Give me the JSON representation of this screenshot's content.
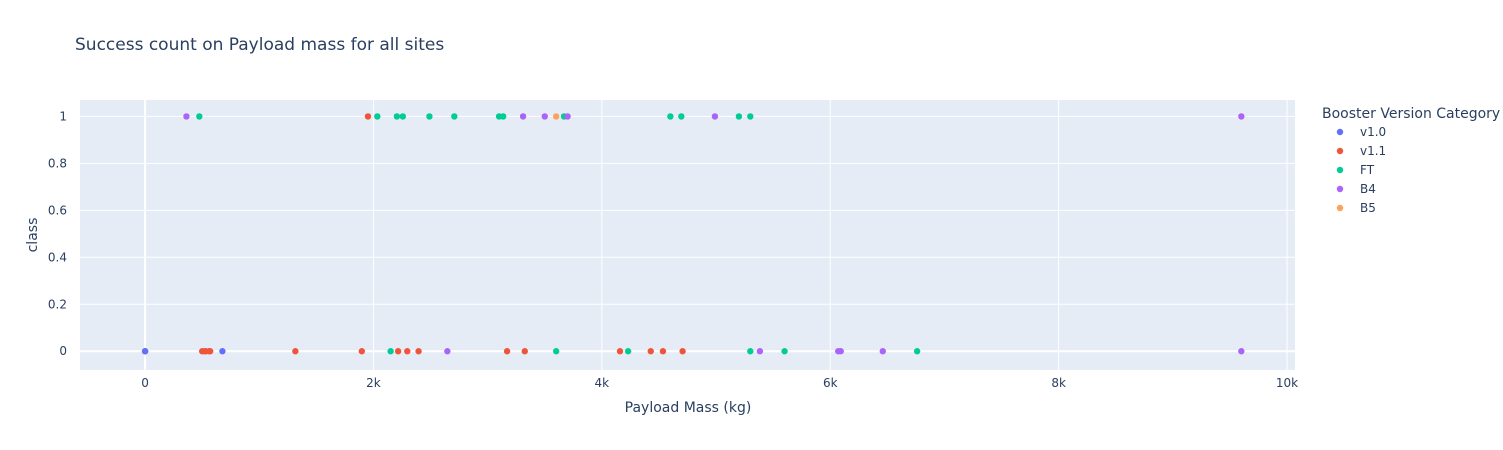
{
  "chart_data": {
    "type": "scatter",
    "title": "Success count on Payload mass for all sites",
    "xlabel": "Payload Mass (kg)",
    "ylabel": "class",
    "xlim": [
      -570,
      10070
    ],
    "ylim": [
      -0.08,
      1.07
    ],
    "xticks": [
      {
        "value": 0,
        "label": "0"
      },
      {
        "value": 2000,
        "label": "2k"
      },
      {
        "value": 4000,
        "label": "4k"
      },
      {
        "value": 6000,
        "label": "6k"
      },
      {
        "value": 8000,
        "label": "8k"
      },
      {
        "value": 10000,
        "label": "10k"
      }
    ],
    "yticks": [
      {
        "value": 0,
        "label": "0"
      },
      {
        "value": 0.2,
        "label": "0.2"
      },
      {
        "value": 0.4,
        "label": "0.4"
      },
      {
        "value": 0.6,
        "label": "0.6"
      },
      {
        "value": 0.8,
        "label": "0.8"
      },
      {
        "value": 1,
        "label": "1"
      }
    ],
    "grid": true,
    "background": "#e5ecf6",
    "legend_title": "Booster Version Category",
    "legend_position": "right",
    "series": [
      {
        "name": "v1.0",
        "color": "#636efa",
        "points": [
          [
            0,
            0
          ],
          [
            0,
            0
          ],
          [
            525,
            0
          ],
          [
            677,
            0
          ]
        ]
      },
      {
        "name": "v1.1",
        "color": "#ef553b",
        "points": [
          [
            500,
            0
          ],
          [
            530,
            0
          ],
          [
            560,
            0
          ],
          [
            570,
            0
          ],
          [
            1316,
            0
          ],
          [
            1898,
            0
          ],
          [
            1952,
            1
          ],
          [
            2216,
            0
          ],
          [
            2296,
            0
          ],
          [
            2395,
            0
          ],
          [
            3170,
            0
          ],
          [
            3325,
            0
          ],
          [
            4159,
            0
          ],
          [
            4428,
            0
          ],
          [
            4535,
            0
          ],
          [
            4707,
            0
          ]
        ]
      },
      {
        "name": "FT",
        "color": "#00cc96",
        "points": [
          [
            475,
            1
          ],
          [
            2034,
            1
          ],
          [
            2150,
            0
          ],
          [
            2205,
            1
          ],
          [
            2257,
            1
          ],
          [
            2490,
            1
          ],
          [
            2708,
            1
          ],
          [
            3100,
            1
          ],
          [
            3136,
            1
          ],
          [
            3600,
            0
          ],
          [
            3669,
            1
          ],
          [
            4230,
            0
          ],
          [
            4600,
            1
          ],
          [
            4696,
            1
          ],
          [
            5200,
            1
          ],
          [
            5300,
            1
          ],
          [
            5300,
            0
          ],
          [
            5600,
            0
          ],
          [
            6761,
            0
          ]
        ]
      },
      {
        "name": "B4",
        "color": "#ab63fa",
        "points": [
          [
            362,
            1
          ],
          [
            2647,
            0
          ],
          [
            3310,
            1
          ],
          [
            3500,
            1
          ],
          [
            3700,
            1
          ],
          [
            4990,
            1
          ],
          [
            5384,
            0
          ],
          [
            6070,
            0
          ],
          [
            6092,
            0
          ],
          [
            6460,
            0
          ],
          [
            9600,
            1
          ],
          [
            9600,
            0
          ]
        ]
      },
      {
        "name": "B5",
        "color": "#ffa15a",
        "points": [
          [
            3600,
            1
          ]
        ]
      }
    ]
  }
}
